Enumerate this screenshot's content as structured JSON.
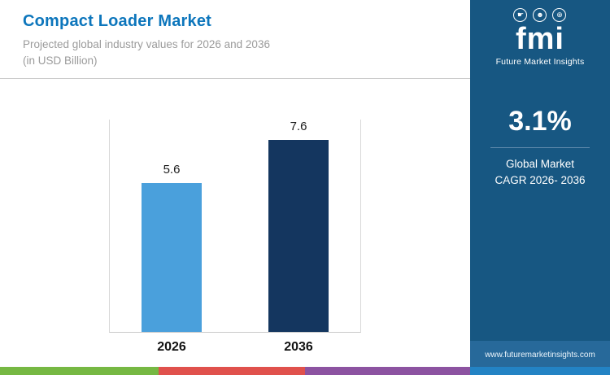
{
  "header": {
    "title": "Compact Loader Market",
    "subtitle_line1": "Projected global industry values for 2026 and 2036",
    "subtitle_line2": "(in USD Billion)"
  },
  "chart_data": {
    "type": "bar",
    "categories": [
      "2026",
      "2036"
    ],
    "values": [
      5.6,
      7.6
    ],
    "value_labels": [
      "5.6",
      "7.6"
    ],
    "bar_colors": [
      "#4aa0dc",
      "#14365f"
    ],
    "title": "Compact Loader Market",
    "xlabel": "",
    "ylabel": "USD Billion",
    "ylim": [
      0,
      8
    ],
    "grid": false,
    "legend": false
  },
  "sidebar": {
    "logo_text": "fmi",
    "logo_subtext": "Future Market Insights",
    "logo_icon_glyphs": [
      "☛",
      "☻",
      "⊕"
    ],
    "stat_value": "3.1%",
    "stat_label_line1": "Global Market",
    "stat_label_line2": "CAGR 2026- 2036",
    "website": "www.futuremarketinsights.com",
    "background_color": "#175782"
  },
  "footer_strip": {
    "colors": [
      "#76b843",
      "#e0514c",
      "#8c53a1",
      "#2383c4"
    ],
    "widths_pct": [
      26,
      24,
      27,
      23
    ]
  }
}
